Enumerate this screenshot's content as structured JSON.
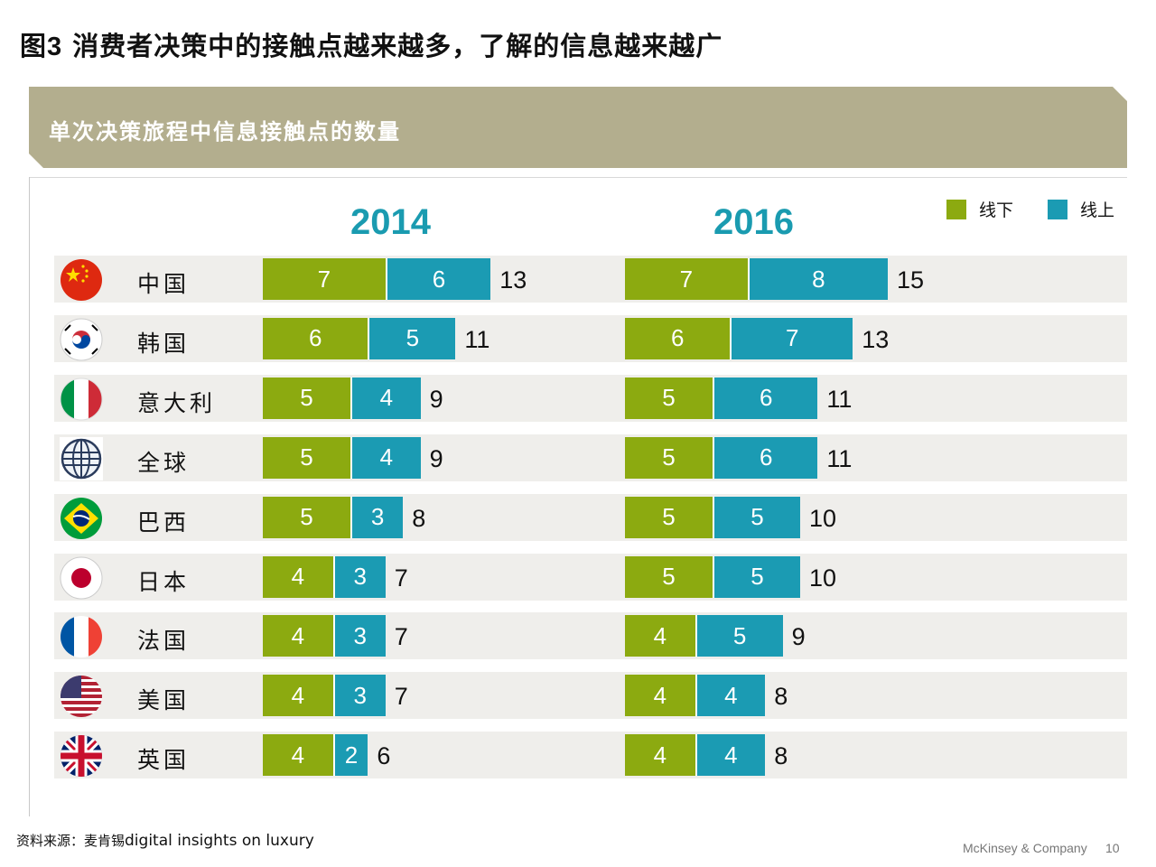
{
  "title": {
    "prefix": "图",
    "number": "3",
    "text": "消费者决策中的接触点越来越多，了解的信息越来越广"
  },
  "banner": "单次决策旅程中信息接触点的数量",
  "colors": {
    "offline": "#8caa10",
    "online": "#1b9bb3",
    "year": "#1a9bb0",
    "banner": "#b3ae8e"
  },
  "chart_data": {
    "type": "bar",
    "stacked": true,
    "orientation": "horizontal",
    "title": "单次决策旅程中信息接触点的数量",
    "legend": [
      "线下",
      "线上"
    ],
    "legend_position": "top-right",
    "panels": [
      {
        "year": "2014",
        "rows": [
          {
            "country": "中国",
            "offline": 7,
            "online": 6,
            "total": "13"
          },
          {
            "country": "韩国",
            "offline": 6,
            "online": 5,
            "total": "11"
          },
          {
            "country": "意大利",
            "offline": 5,
            "online": 4,
            "total": "9"
          },
          {
            "country": "全球",
            "offline": 5,
            "online": 4,
            "total": "9"
          },
          {
            "country": "巴西",
            "offline": 5,
            "online": 3,
            "total": "8"
          },
          {
            "country": "日本",
            "offline": 4,
            "online": 3,
            "total": "7"
          },
          {
            "country": "法国",
            "offline": 4,
            "online": 3,
            "total": "7"
          },
          {
            "country": "美国",
            "offline": 4,
            "online": 3,
            "total": "7"
          },
          {
            "country": "英国",
            "offline": 4,
            "online": 2,
            "total": "6"
          }
        ]
      },
      {
        "year": "2016",
        "rows": [
          {
            "country": "中国",
            "offline": 7,
            "online": 8,
            "total": "15"
          },
          {
            "country": "韩国",
            "offline": 6,
            "online": 7,
            "total": "13"
          },
          {
            "country": "意大利",
            "offline": 5,
            "online": 6,
            "total": "11"
          },
          {
            "country": "全球",
            "offline": 5,
            "online": 6,
            "total": "11"
          },
          {
            "country": "巴西",
            "offline": 5,
            "online": 5,
            "total": "10"
          },
          {
            "country": "日本",
            "offline": 5,
            "online": 5,
            "total": "10"
          },
          {
            "country": "法国",
            "offline": 4,
            "online": 5,
            "total": "9"
          },
          {
            "country": "美国",
            "offline": 4,
            "online": 4,
            "total": "8"
          },
          {
            "country": "英国",
            "offline": 4,
            "online": 4,
            "total": "8"
          }
        ]
      }
    ]
  },
  "flags": [
    "china-flag-icon",
    "korea-flag-icon",
    "italy-flag-icon",
    "globe-icon",
    "brazil-flag-icon",
    "japan-flag-icon",
    "france-flag-icon",
    "usa-flag-icon",
    "uk-flag-icon"
  ],
  "source": {
    "label": "资料来源：麦肯锡",
    "text": "digital insights on luxury"
  },
  "footer": {
    "company": "McKinsey & Company",
    "page": "10"
  }
}
